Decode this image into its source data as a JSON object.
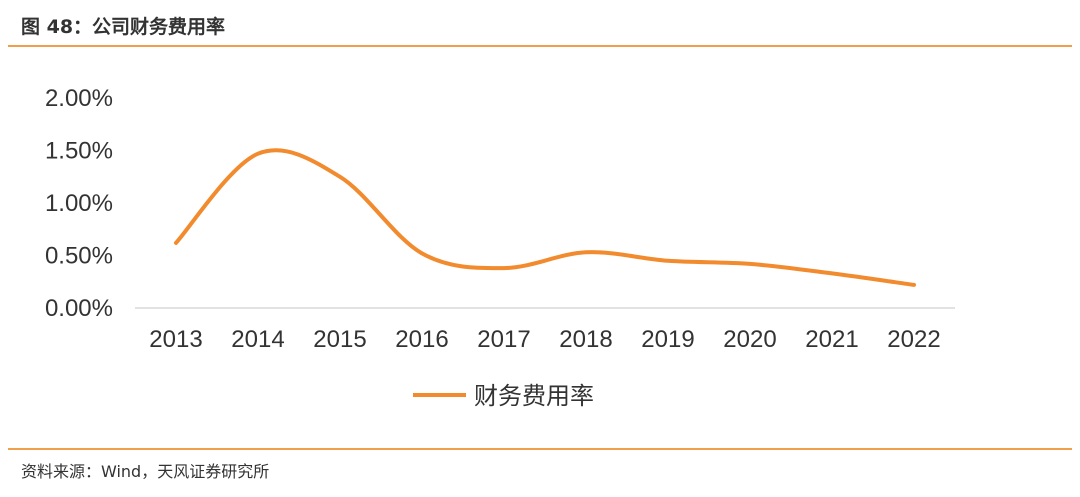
{
  "header": {
    "title": "图 48：公司财务费用率"
  },
  "footer": {
    "source": "资料来源：Wind，天风证券研究所"
  },
  "colors": {
    "accent_rule": "#f0a04b",
    "series": "#f28a2e",
    "axis": "#d9d9d9",
    "text": "#333333"
  },
  "chart_data": {
    "type": "line",
    "title": "",
    "xlabel": "",
    "ylabel": "",
    "categories": [
      "2013",
      "2014",
      "2015",
      "2016",
      "2017",
      "2018",
      "2019",
      "2020",
      "2021",
      "2022"
    ],
    "series": [
      {
        "name": "财务费用率",
        "values": [
          0.62,
          1.47,
          1.25,
          0.52,
          0.38,
          0.53,
          0.45,
          0.42,
          0.33,
          0.22
        ],
        "smooth": true
      }
    ],
    "ylim": [
      0,
      2.0
    ],
    "yticks": [
      "0.00%",
      "0.50%",
      "1.00%",
      "1.50%",
      "2.00%"
    ],
    "ytick_values": [
      0,
      0.5,
      1.0,
      1.5,
      2.0
    ],
    "grid": false,
    "legend_position": "bottom"
  }
}
